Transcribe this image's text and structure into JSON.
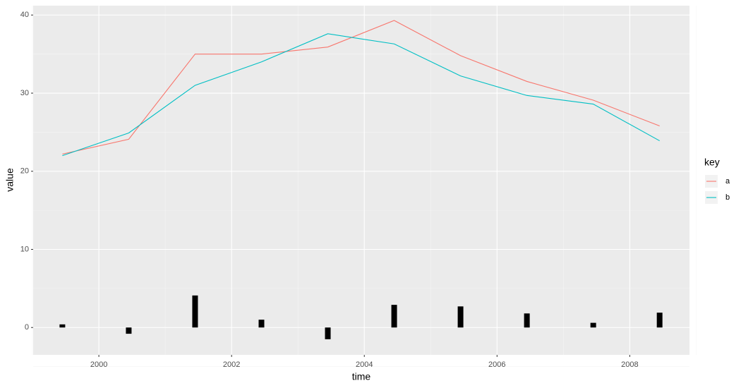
{
  "chart_data": {
    "type": "line",
    "x": [
      1999.45,
      2000.45,
      2001.45,
      2002.45,
      2003.45,
      2004.45,
      2005.45,
      2006.45,
      2007.45,
      2008.45
    ],
    "series": [
      {
        "name": "a",
        "color": "#F8766D",
        "values": [
          22.2,
          24.1,
          35.0,
          35.0,
          35.9,
          39.3,
          34.8,
          31.5,
          29.1,
          25.8
        ]
      },
      {
        "name": "b",
        "color": "#00BFC4",
        "values": [
          22.0,
          24.9,
          31.0,
          34.0,
          37.6,
          36.3,
          32.2,
          29.7,
          28.6,
          23.9
        ]
      }
    ],
    "bars": {
      "type": "bar",
      "color": "#000000",
      "values": [
        0.4,
        -0.8,
        4.1,
        1.0,
        -1.5,
        2.9,
        2.7,
        1.8,
        0.6,
        1.9
      ]
    },
    "xlabel": "time",
    "ylabel": "value",
    "legend_title": "key",
    "legend_position": "right",
    "xlim": [
      1999.01,
      2008.9
    ],
    "xticks": [
      2000,
      2002,
      2004,
      2006,
      2008
    ],
    "ylim": [
      -3.5,
      41.2
    ],
    "yticks": [
      0,
      10,
      20,
      30,
      40
    ],
    "grid": true
  }
}
